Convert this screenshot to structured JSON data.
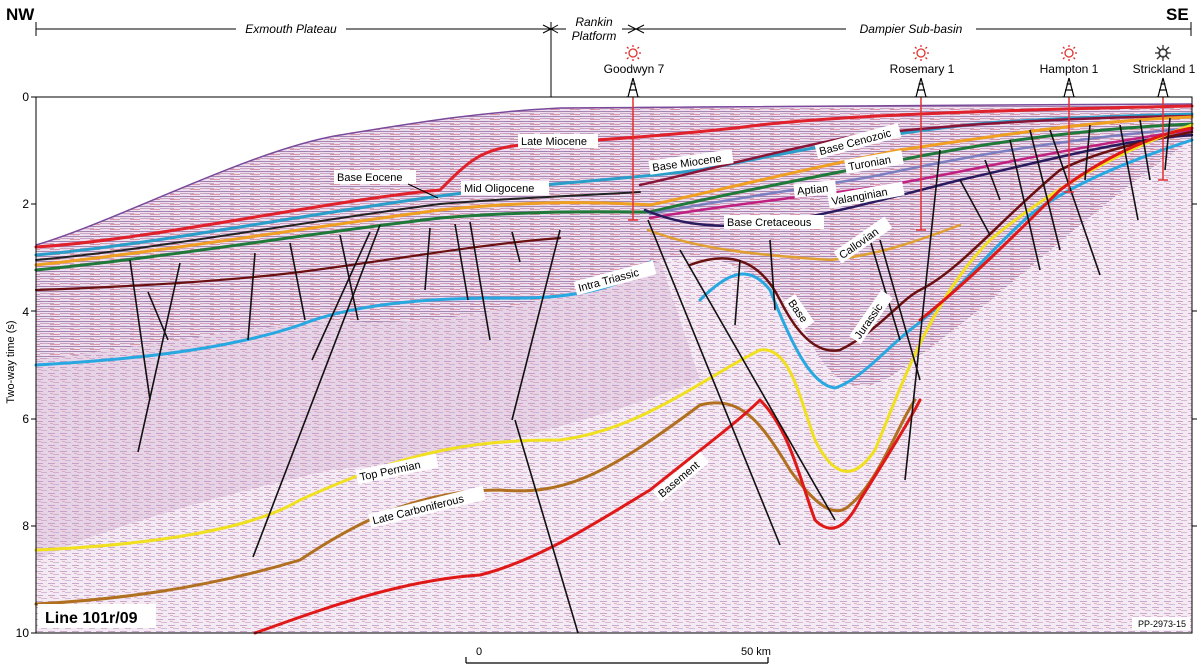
{
  "header": {
    "left_direction": "NW",
    "right_direction": "SE",
    "regions": [
      "Exmouth Plateau",
      "Rankin",
      "Platform",
      "Dampier Sub-basin"
    ]
  },
  "wells": [
    {
      "name": "Goodwyn 7",
      "status": "gas-show",
      "color": "#e23030"
    },
    {
      "name": "Rosemary 1",
      "status": "gas-show",
      "color": "#e23030"
    },
    {
      "name": "Hampton 1",
      "status": "gas-show",
      "color": "#e23030"
    },
    {
      "name": "Strickland 1",
      "status": "dry",
      "color": "#333333"
    }
  ],
  "y_axis": {
    "label": "Two-way time (s)",
    "ticks": [
      "0",
      "2",
      "4",
      "6",
      "8",
      "10"
    ]
  },
  "horizons": [
    {
      "name": "Late Miocene",
      "color": "#e0202a"
    },
    {
      "name": "Base Miocene",
      "color": "#8a1438"
    },
    {
      "name": "Base Eocene",
      "color": "#111111"
    },
    {
      "name": "Mid Oligocene",
      "color": "#2a9ec8"
    },
    {
      "name": "Base Cenozoic",
      "color": "#f0a020"
    },
    {
      "name": "Turonian",
      "color": "#1f7a3a"
    },
    {
      "name": "Aptian",
      "color": "#7b7fc0"
    },
    {
      "name": "Valanginian",
      "color": "#c02080"
    },
    {
      "name": "Base Cretaceous",
      "color": "#2a1a5e"
    },
    {
      "name": "Callovian",
      "color": "#e0a030"
    },
    {
      "name": "Intra Triassic",
      "color": "#28a8e0"
    },
    {
      "name": "Base",
      "color": "#6a1010"
    },
    {
      "name": "Jurassic",
      "color": "#6a1010"
    },
    {
      "name": "Top Permian",
      "color": "#f0e020"
    },
    {
      "name": "Late Carboniferous",
      "color": "#b07020"
    },
    {
      "name": "Basement",
      "color": "#e01818"
    }
  ],
  "line_label": "Line 101r/09",
  "figure_id": "PP-2973-15",
  "scale_bar": {
    "start_label": "0",
    "end_label": "50 km"
  }
}
